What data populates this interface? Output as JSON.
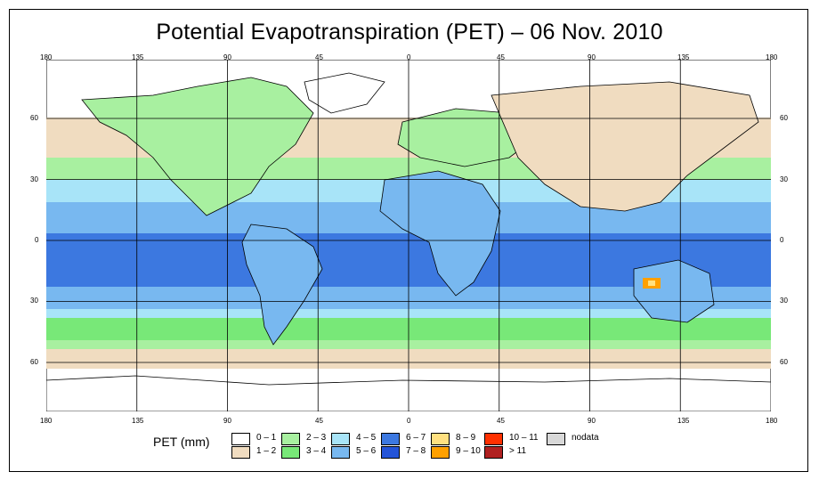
{
  "title": "Potential Evapotranspiration (PET) – 06 Nov. 2010",
  "axes": {
    "lon_labels": [
      "180",
      "135",
      "90",
      "45",
      "0",
      "45",
      "90",
      "135",
      "180"
    ],
    "lat_labels": [
      "60",
      "30",
      "0",
      "30",
      "60"
    ]
  },
  "legend": {
    "title": "PET (mm)",
    "items": [
      {
        "label": "0 – 1",
        "color": "#ffffff"
      },
      {
        "label": "1 – 2",
        "color": "#f0dcc0"
      },
      {
        "label": "2 – 3",
        "color": "#a8f0a0"
      },
      {
        "label": "3 – 4",
        "color": "#78e878"
      },
      {
        "label": "4 – 5",
        "color": "#a8e4f8"
      },
      {
        "label": "5 – 6",
        "color": "#78b8f0"
      },
      {
        "label": "6 – 7",
        "color": "#3c78e0"
      },
      {
        "label": "7 – 8",
        "color": "#2454d8"
      },
      {
        "label": "8 – 9",
        "color": "#ffe080"
      },
      {
        "label": "9 – 10",
        "color": "#ffa000"
      },
      {
        "label": "10 – 11",
        "color": "#ff3000"
      },
      {
        "label": "> 11",
        "color": "#b02020"
      },
      {
        "label": "nodata",
        "color": "#d8d8d8"
      }
    ]
  },
  "colors": {
    "land_outline": "#000000",
    "grid": "#000000"
  }
}
